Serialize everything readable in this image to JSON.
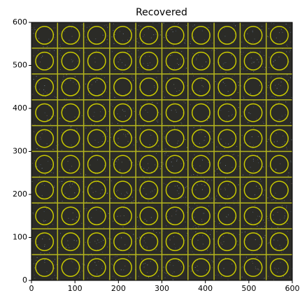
{
  "chart_data": {
    "type": "image",
    "title": "Recovered",
    "xlim": [
      0,
      600
    ],
    "ylim": [
      0,
      600
    ],
    "xticks": [
      0,
      100,
      200,
      300,
      400,
      500,
      600
    ],
    "yticks": [
      0,
      100,
      200,
      300,
      400,
      500,
      600
    ]
  }
}
